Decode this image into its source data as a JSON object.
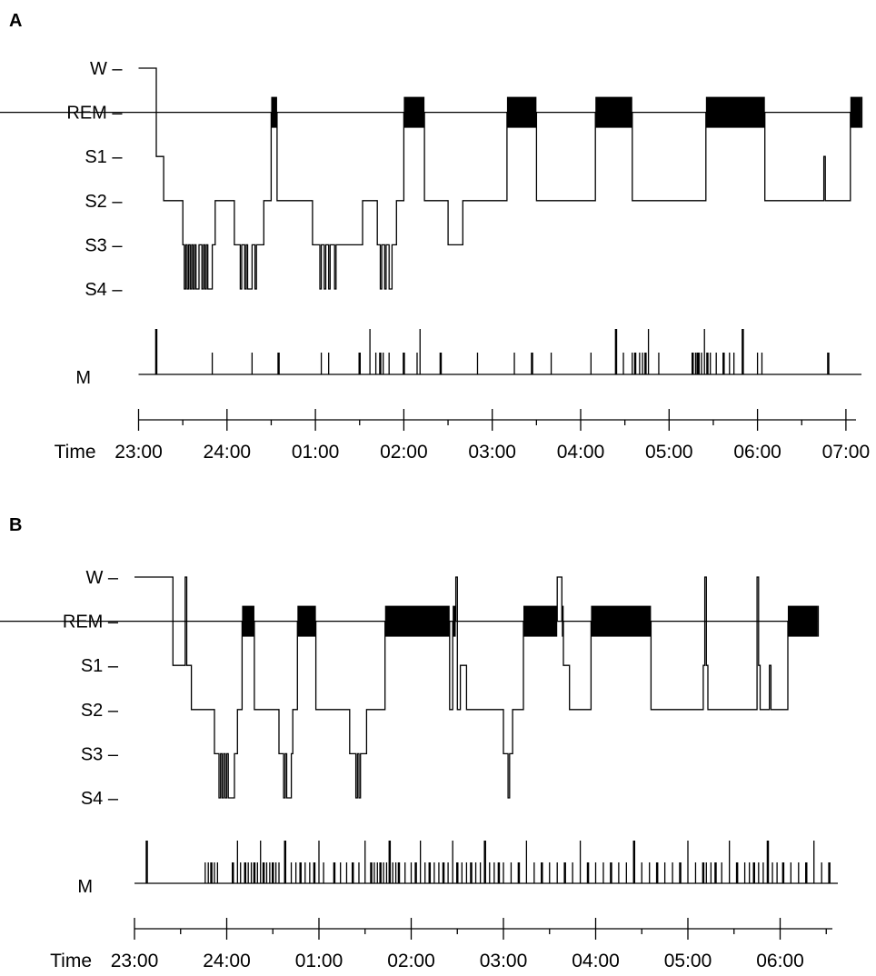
{
  "chart_data": [
    {
      "type": "hypnogram",
      "panel": "A",
      "stage_labels": [
        "W –",
        "REM –",
        "S1 –",
        "S2 –",
        "S3 –",
        "S4 –"
      ],
      "movement_label": "M",
      "time_prefix": "Time",
      "time_ticks": [
        "23:00",
        "24:00",
        "01:00",
        "02:00",
        "03:00",
        "04:00",
        "05:00",
        "06:00",
        "07:00"
      ],
      "time_range": [
        "23:00",
        "07:10"
      ],
      "stages": [
        [
          "23:00",
          "W"
        ],
        [
          "23:12",
          "S1"
        ],
        [
          "23:17",
          "S2"
        ],
        [
          "23:30",
          "S3"
        ],
        [
          "23:31",
          "S4"
        ],
        [
          "23:32",
          "S3"
        ],
        [
          "23:33",
          "S4"
        ],
        [
          "23:34",
          "S3"
        ],
        [
          "23:35",
          "S4"
        ],
        [
          "23:36",
          "S3"
        ],
        [
          "23:37",
          "S4"
        ],
        [
          "23:38",
          "S3"
        ],
        [
          "23:39",
          "S4"
        ],
        [
          "23:41",
          "S3"
        ],
        [
          "23:43",
          "S4"
        ],
        [
          "23:44",
          "S3"
        ],
        [
          "23:45",
          "S4"
        ],
        [
          "23:46",
          "S3"
        ],
        [
          "23:47",
          "S4"
        ],
        [
          "23:50",
          "S3"
        ],
        [
          "23:52",
          "S2"
        ],
        [
          "24:05",
          "S3"
        ],
        [
          "24:09",
          "S4"
        ],
        [
          "24:10",
          "S3"
        ],
        [
          "24:12",
          "S4"
        ],
        [
          "24:13",
          "S3"
        ],
        [
          "24:14",
          "S4"
        ],
        [
          "24:17",
          "S3"
        ],
        [
          "24:19",
          "S4"
        ],
        [
          "24:20",
          "S3"
        ],
        [
          "24:25",
          "S2"
        ],
        [
          "24:30",
          "REM"
        ],
        [
          "24:34",
          "S2"
        ],
        [
          "24:58",
          "S3"
        ],
        [
          "25:03",
          "S4"
        ],
        [
          "25:04",
          "S3"
        ],
        [
          "25:06",
          "S4"
        ],
        [
          "25:07",
          "S3"
        ],
        [
          "25:09",
          "S4"
        ],
        [
          "25:10",
          "S3"
        ],
        [
          "25:13",
          "S4"
        ],
        [
          "25:14",
          "S3"
        ],
        [
          "25:32",
          "S2"
        ],
        [
          "25:42",
          "S3"
        ],
        [
          "25:44",
          "S4"
        ],
        [
          "25:45",
          "S3"
        ],
        [
          "25:47",
          "S4"
        ],
        [
          "25:48",
          "S3"
        ],
        [
          "25:50",
          "S4"
        ],
        [
          "25:52",
          "S3"
        ],
        [
          "25:55",
          "S2"
        ],
        [
          "26:00",
          "REM"
        ],
        [
          "26:14",
          "S2"
        ],
        [
          "26:30",
          "S3"
        ],
        [
          "26:40",
          "S2"
        ],
        [
          "27:10",
          "REM"
        ],
        [
          "27:30",
          "S2"
        ],
        [
          "28:10",
          "REM"
        ],
        [
          "28:35",
          "S2"
        ],
        [
          "29:25",
          "REM"
        ],
        [
          "30:05",
          "S2"
        ],
        [
          "30:45",
          "S1"
        ],
        [
          "30:46",
          "S2"
        ],
        [
          "31:03",
          "REM"
        ],
        [
          "31:10",
          "REM"
        ]
      ],
      "movements": [
        "23:12",
        "23:50",
        "24:17",
        "24:35",
        "25:04",
        "25:09",
        "25:30",
        "25:37",
        "25:41",
        "25:44",
        "25:46",
        "25:50",
        "26:00",
        "26:09",
        "26:11",
        "26:25",
        "26:50",
        "27:15",
        "27:27",
        "27:40",
        "28:07",
        "28:24",
        "28:29",
        "28:35",
        "28:37",
        "28:40",
        "28:42",
        "28:44",
        "28:46",
        "28:53",
        "29:16",
        "29:18",
        "29:19",
        "29:20",
        "29:22",
        "29:24",
        "29:26",
        "29:28",
        "29:32",
        "29:37",
        "29:41",
        "29:44",
        "29:50",
        "30:00",
        "30:03",
        "30:48"
      ]
    },
    {
      "type": "hypnogram",
      "panel": "B",
      "stage_labels": [
        "W –",
        "REM –",
        "S1 –",
        "S2 –",
        "S3 –",
        "S4 –"
      ],
      "movement_label": "M",
      "time_prefix": "Time",
      "time_ticks": [
        "23:00",
        "24:00",
        "01:00",
        "02:00",
        "03:00",
        "04:00",
        "05:00",
        "06:00"
      ],
      "time_range": [
        "23:00",
        "06:35"
      ],
      "stages": [
        [
          "23:00",
          "W"
        ],
        [
          "23:25",
          "S1"
        ],
        [
          "23:33",
          "W"
        ],
        [
          "23:34",
          "S1"
        ],
        [
          "23:37",
          "S2"
        ],
        [
          "23:52",
          "S3"
        ],
        [
          "23:55",
          "S4"
        ],
        [
          "23:56",
          "S3"
        ],
        [
          "23:57",
          "S4"
        ],
        [
          "23:58",
          "S3"
        ],
        [
          "23:59",
          "S4"
        ],
        [
          "24:00",
          "S3"
        ],
        [
          "24:01",
          "S4"
        ],
        [
          "24:05",
          "S3"
        ],
        [
          "24:07",
          "S2"
        ],
        [
          "24:10",
          "REM"
        ],
        [
          "24:18",
          "S2"
        ],
        [
          "24:34",
          "S3"
        ],
        [
          "24:37",
          "S4"
        ],
        [
          "24:38",
          "S3"
        ],
        [
          "24:39",
          "S4"
        ],
        [
          "24:42",
          "S3"
        ],
        [
          "24:43",
          "S2"
        ],
        [
          "24:46",
          "REM"
        ],
        [
          "24:58",
          "S2"
        ],
        [
          "25:20",
          "S3"
        ],
        [
          "25:24",
          "S4"
        ],
        [
          "25:25",
          "S3"
        ],
        [
          "25:26",
          "S4"
        ],
        [
          "25:27",
          "S3"
        ],
        [
          "25:31",
          "S2"
        ],
        [
          "25:43",
          "REM"
        ],
        [
          "26:25",
          "S2"
        ],
        [
          "26:27",
          "REM"
        ],
        [
          "26:29",
          "W"
        ],
        [
          "26:30",
          "S2"
        ],
        [
          "26:32",
          "S1"
        ],
        [
          "26:36",
          "S2"
        ],
        [
          "27:00",
          "S3"
        ],
        [
          "27:03",
          "S4"
        ],
        [
          "27:04",
          "S3"
        ],
        [
          "27:06",
          "S2"
        ],
        [
          "27:13",
          "REM"
        ],
        [
          "27:35",
          "W"
        ],
        [
          "27:38",
          "REM"
        ],
        [
          "27:39",
          "S1"
        ],
        [
          "27:43",
          "S2"
        ],
        [
          "27:57",
          "REM"
        ],
        [
          "28:36",
          "S2"
        ],
        [
          "29:10",
          "S1"
        ],
        [
          "29:11",
          "W"
        ],
        [
          "29:12",
          "S1"
        ],
        [
          "29:13",
          "S2"
        ],
        [
          "29:45",
          "W"
        ],
        [
          "29:46",
          "S1"
        ],
        [
          "29:47",
          "S2"
        ],
        [
          "29:53",
          "S1"
        ],
        [
          "29:54",
          "S2"
        ],
        [
          "30:05",
          "REM"
        ],
        [
          "30:24",
          "REM"
        ]
      ],
      "movements": [
        "23:08",
        "23:46",
        "23:48",
        "23:50",
        "23:52",
        "23:54",
        "24:04",
        "24:07",
        "24:09",
        "24:12",
        "24:14",
        "24:16",
        "24:18",
        "24:20",
        "24:22",
        "24:24",
        "24:26",
        "24:28",
        "24:30",
        "24:32",
        "24:34",
        "24:38",
        "24:42",
        "24:45",
        "24:48",
        "24:51",
        "24:54",
        "24:57",
        "25:00",
        "25:03",
        "25:10",
        "25:14",
        "25:18",
        "25:22",
        "25:26",
        "25:30",
        "25:34",
        "25:36",
        "25:38",
        "25:40",
        "25:42",
        "25:44",
        "25:46",
        "25:48",
        "25:50",
        "25:52",
        "25:56",
        "26:00",
        "26:03",
        "26:06",
        "26:09",
        "26:12",
        "26:15",
        "26:18",
        "26:21",
        "26:24",
        "26:27",
        "26:30",
        "26:33",
        "26:36",
        "26:39",
        "26:42",
        "26:45",
        "26:48",
        "26:51",
        "26:54",
        "26:57",
        "27:00",
        "27:05",
        "27:10",
        "27:15",
        "27:20",
        "27:25",
        "27:30",
        "27:35",
        "27:40",
        "27:45",
        "27:50",
        "27:55",
        "28:00",
        "28:05",
        "28:10",
        "28:15",
        "28:20",
        "28:25",
        "28:30",
        "28:35",
        "28:40",
        "28:45",
        "28:50",
        "28:55",
        "29:00",
        "29:05",
        "29:10",
        "29:12",
        "29:15",
        "29:18",
        "29:22",
        "29:27",
        "29:32",
        "29:37",
        "29:40",
        "29:43",
        "29:46",
        "29:49",
        "29:52",
        "29:55",
        "29:58",
        "30:02",
        "30:07",
        "30:12",
        "30:17",
        "30:22",
        "30:27",
        "30:32"
      ]
    }
  ]
}
